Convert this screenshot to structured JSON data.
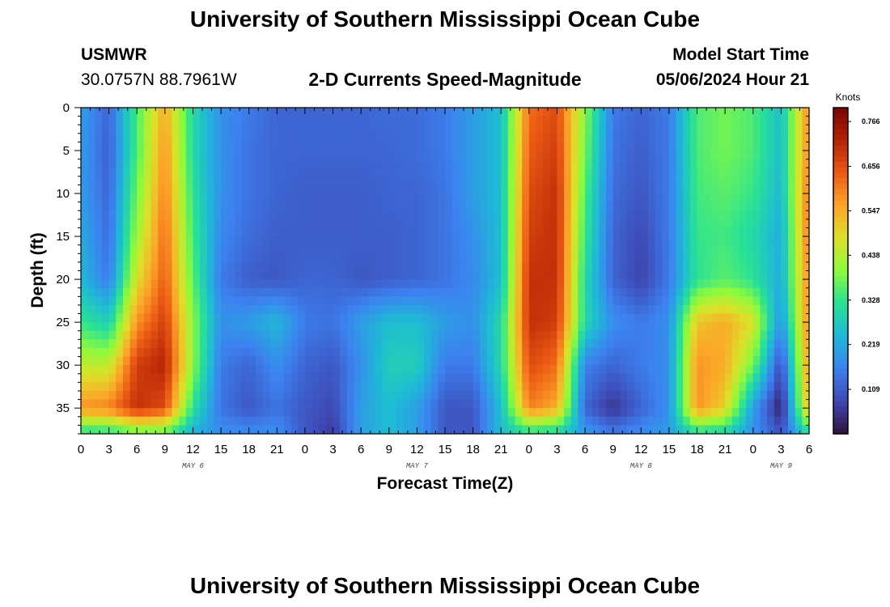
{
  "header": {
    "title_top": "University of Southern Mississippi Ocean Cube",
    "title_bottom": "University of Southern Mississippi Ocean Cube",
    "station_id": "USMWR",
    "station_coords": "30.0757N  88.7961W",
    "plot_title": "2-D Currents Speed-Magnitude",
    "model_start_label": "Model Start Time",
    "model_start_value": "05/06/2024 Hour 21"
  },
  "chart_data": {
    "type": "heatmap",
    "title": "2-D Currents Speed-Magnitude",
    "xlabel": "Forecast Time(Z)",
    "ylabel": "Depth (ft)",
    "x_hours_range": [
      0,
      78
    ],
    "y_depth_range_ft": [
      0,
      38
    ],
    "x_tick_labels": [
      "0",
      "3",
      "6",
      "9",
      "12",
      "15",
      "18",
      "21",
      "0",
      "3",
      "6",
      "9",
      "12",
      "15",
      "18",
      "21",
      "0",
      "3",
      "6",
      "9",
      "12",
      "15",
      "18",
      "21",
      "0",
      "3",
      "6"
    ],
    "y_ticks": [
      0,
      5,
      10,
      15,
      20,
      25,
      30,
      35
    ],
    "y_tick_labels": [
      "0",
      "5",
      "10",
      "15",
      "20",
      "25",
      "30",
      "35"
    ],
    "date_labels": [
      {
        "text": "MAY 6",
        "hour": 12
      },
      {
        "text": "MAY 7",
        "hour": 36
      },
      {
        "text": "MAY 8",
        "hour": 60
      },
      {
        "text": "MAY 9",
        "hour": 75
      }
    ],
    "colorbar": {
      "unit": "Knots",
      "min": 0.0,
      "max": 0.8,
      "tick_values": [
        0.766,
        0.656,
        0.547,
        0.438,
        0.328,
        0.219,
        0.109
      ],
      "tick_labels": [
        "0.766",
        "0.656",
        "0.547",
        "0.438",
        "0.328",
        "0.219",
        "0.109"
      ]
    },
    "speed_field_knots": {
      "description": "Approximate current speed (knots) read from the color field; rows = depth (ft), cols = forecast hour",
      "hours": [
        0,
        3,
        6,
        9,
        12,
        15,
        18,
        21,
        24,
        27,
        30,
        33,
        36,
        39,
        42,
        45,
        48,
        51,
        54,
        57,
        60,
        63,
        66,
        69,
        72,
        75,
        78
      ],
      "depths": [
        0,
        5,
        10,
        15,
        20,
        25,
        30,
        35,
        38
      ],
      "values": [
        [
          0.2,
          0.12,
          0.35,
          0.55,
          0.3,
          0.18,
          0.15,
          0.12,
          0.12,
          0.12,
          0.12,
          0.13,
          0.13,
          0.15,
          0.2,
          0.25,
          0.62,
          0.66,
          0.4,
          0.15,
          0.12,
          0.15,
          0.35,
          0.38,
          0.35,
          0.25,
          0.6
        ],
        [
          0.2,
          0.11,
          0.35,
          0.58,
          0.3,
          0.18,
          0.14,
          0.12,
          0.12,
          0.12,
          0.12,
          0.12,
          0.13,
          0.15,
          0.2,
          0.25,
          0.64,
          0.68,
          0.38,
          0.14,
          0.11,
          0.15,
          0.35,
          0.38,
          0.35,
          0.25,
          0.6
        ],
        [
          0.2,
          0.12,
          0.38,
          0.6,
          0.32,
          0.18,
          0.14,
          0.12,
          0.11,
          0.11,
          0.11,
          0.12,
          0.12,
          0.14,
          0.2,
          0.25,
          0.66,
          0.7,
          0.35,
          0.13,
          0.1,
          0.15,
          0.34,
          0.36,
          0.33,
          0.24,
          0.62
        ],
        [
          0.22,
          0.13,
          0.42,
          0.62,
          0.34,
          0.17,
          0.13,
          0.11,
          0.11,
          0.11,
          0.11,
          0.11,
          0.12,
          0.14,
          0.18,
          0.25,
          0.68,
          0.7,
          0.33,
          0.12,
          0.08,
          0.15,
          0.33,
          0.34,
          0.3,
          0.22,
          0.62
        ],
        [
          0.24,
          0.15,
          0.48,
          0.64,
          0.36,
          0.15,
          0.11,
          0.1,
          0.12,
          0.12,
          0.1,
          0.11,
          0.12,
          0.14,
          0.17,
          0.25,
          0.7,
          0.7,
          0.3,
          0.12,
          0.07,
          0.15,
          0.32,
          0.36,
          0.32,
          0.22,
          0.6
        ],
        [
          0.33,
          0.28,
          0.58,
          0.68,
          0.4,
          0.18,
          0.2,
          0.24,
          0.15,
          0.14,
          0.2,
          0.25,
          0.25,
          0.2,
          0.18,
          0.3,
          0.7,
          0.68,
          0.3,
          0.18,
          0.15,
          0.18,
          0.52,
          0.55,
          0.48,
          0.18,
          0.6
        ],
        [
          0.45,
          0.45,
          0.68,
          0.72,
          0.4,
          0.15,
          0.12,
          0.18,
          0.12,
          0.1,
          0.18,
          0.28,
          0.28,
          0.15,
          0.15,
          0.3,
          0.66,
          0.62,
          0.16,
          0.12,
          0.15,
          0.18,
          0.58,
          0.55,
          0.38,
          0.08,
          0.58
        ],
        [
          0.58,
          0.6,
          0.7,
          0.66,
          0.32,
          0.14,
          0.1,
          0.14,
          0.1,
          0.08,
          0.2,
          0.25,
          0.2,
          0.1,
          0.1,
          0.25,
          0.6,
          0.55,
          0.12,
          0.05,
          0.12,
          0.18,
          0.58,
          0.5,
          0.2,
          0.02,
          0.55
        ],
        [
          0.3,
          0.3,
          0.35,
          0.35,
          0.22,
          0.18,
          0.18,
          0.18,
          0.1,
          0.06,
          0.2,
          0.25,
          0.2,
          0.1,
          0.1,
          0.25,
          0.3,
          0.28,
          0.2,
          0.15,
          0.18,
          0.2,
          0.3,
          0.28,
          0.18,
          0.1,
          0.3
        ]
      ]
    }
  }
}
